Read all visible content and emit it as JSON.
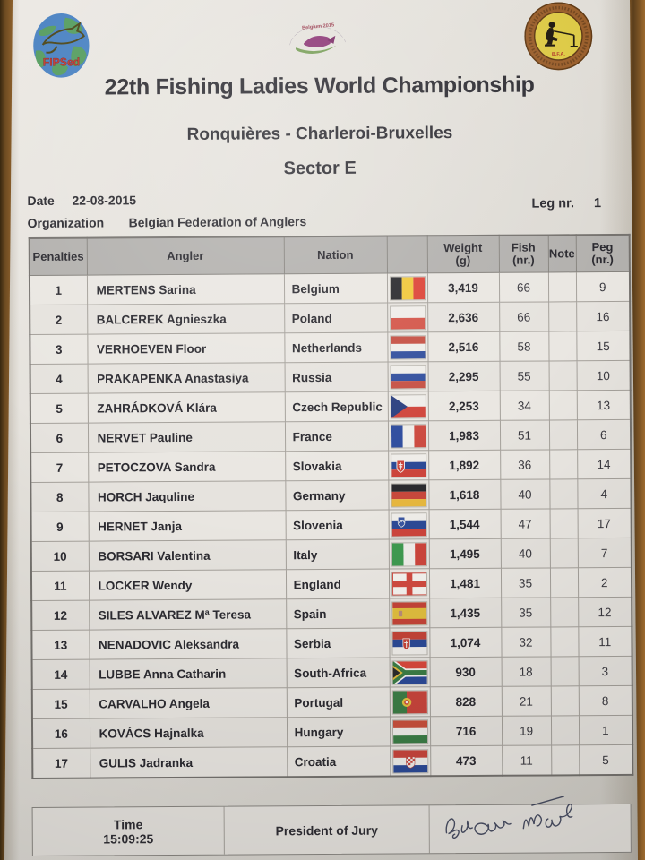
{
  "colors": {
    "desk_wood": "#8a5e2b",
    "paper": "#e3e0da",
    "table_header_bg": "#b3b1ae",
    "ink": "#2c2b31",
    "signature_ink": "#343a52",
    "fipsed_red": "#c03830",
    "bfa_red": "#b03028"
  },
  "header": {
    "title": "22th Fishing Ladies World Championship",
    "subtitle": "Ronquières - Charleroi-Bruxelles",
    "sector": "Sector E",
    "logos": {
      "left": {
        "name": "fipsed-globe-logo",
        "text": "FIPSed"
      },
      "center": {
        "name": "championship-2015-emblem",
        "text": "Belgium 2015"
      },
      "right": {
        "name": "bfa-federation-badge",
        "text": "B.F.A."
      }
    }
  },
  "meta": {
    "date_label": "Date",
    "date_value": "22-08-2015",
    "organization_label": "Organization",
    "organization_value": "Belgian Federation of Anglers",
    "leg_label": "Leg nr.",
    "leg_value": "1"
  },
  "table": {
    "headers": {
      "penalties": "Penalties",
      "angler": "Angler",
      "nation": "Nation",
      "weight_l1": "Weight",
      "weight_l2": "(g)",
      "fish_l1": "Fish",
      "fish_l2": "(nr.)",
      "note": "Note",
      "peg_l1": "Peg",
      "peg_l2": "(nr.)"
    },
    "rows": [
      {
        "rank": "1",
        "angler": "MERTENS Sarina",
        "nation": "Belgium",
        "flag": "belgium",
        "weight": "3,419",
        "fish": "66",
        "note": "",
        "peg": "9"
      },
      {
        "rank": "2",
        "angler": "BALCEREK Agnieszka",
        "nation": "Poland",
        "flag": "poland",
        "weight": "2,636",
        "fish": "66",
        "note": "",
        "peg": "16"
      },
      {
        "rank": "3",
        "angler": "VERHOEVEN Floor",
        "nation": "Netherlands",
        "flag": "netherlands",
        "weight": "2,516",
        "fish": "58",
        "note": "",
        "peg": "15"
      },
      {
        "rank": "4",
        "angler": "PRAKAPENKA Anastasiya",
        "nation": "Russia",
        "flag": "russia",
        "weight": "2,295",
        "fish": "55",
        "note": "",
        "peg": "10"
      },
      {
        "rank": "5",
        "angler": "ZAHRÁDKOVÁ Klára",
        "nation": "Czech Republic",
        "flag": "czech-republic",
        "weight": "2,253",
        "fish": "34",
        "note": "",
        "peg": "13"
      },
      {
        "rank": "6",
        "angler": "NERVET Pauline",
        "nation": "France",
        "flag": "france",
        "weight": "1,983",
        "fish": "51",
        "note": "",
        "peg": "6"
      },
      {
        "rank": "7",
        "angler": "PETOCZOVA Sandra",
        "nation": "Slovakia",
        "flag": "slovakia",
        "weight": "1,892",
        "fish": "36",
        "note": "",
        "peg": "14"
      },
      {
        "rank": "8",
        "angler": "HORCH Jaquline",
        "nation": "Germany",
        "flag": "germany",
        "weight": "1,618",
        "fish": "40",
        "note": "",
        "peg": "4"
      },
      {
        "rank": "9",
        "angler": "HERNET Janja",
        "nation": "Slovenia",
        "flag": "slovenia",
        "weight": "1,544",
        "fish": "47",
        "note": "",
        "peg": "17"
      },
      {
        "rank": "10",
        "angler": "BORSARI Valentina",
        "nation": "Italy",
        "flag": "italy",
        "weight": "1,495",
        "fish": "40",
        "note": "",
        "peg": "7"
      },
      {
        "rank": "11",
        "angler": "LOCKER Wendy",
        "nation": "England",
        "flag": "england",
        "weight": "1,481",
        "fish": "35",
        "note": "",
        "peg": "2"
      },
      {
        "rank": "12",
        "angler": "SILES ALVAREZ Mª Teresa",
        "nation": "Spain",
        "flag": "spain",
        "weight": "1,435",
        "fish": "35",
        "note": "",
        "peg": "12"
      },
      {
        "rank": "13",
        "angler": "NENADOVIC Aleksandra",
        "nation": "Serbia",
        "flag": "serbia",
        "weight": "1,074",
        "fish": "32",
        "note": "",
        "peg": "11"
      },
      {
        "rank": "14",
        "angler": "LUBBE Anna Catharin",
        "nation": "South-Africa",
        "flag": "south-africa",
        "weight": "930",
        "fish": "18",
        "note": "",
        "peg": "3"
      },
      {
        "rank": "15",
        "angler": "CARVALHO Angela",
        "nation": "Portugal",
        "flag": "portugal",
        "weight": "828",
        "fish": "21",
        "note": "",
        "peg": "8"
      },
      {
        "rank": "16",
        "angler": "KOVÁCS Hajnalka",
        "nation": "Hungary",
        "flag": "hungary",
        "weight": "716",
        "fish": "19",
        "note": "",
        "peg": "1"
      },
      {
        "rank": "17",
        "angler": "GULIS Jadranka",
        "nation": "Croatia",
        "flag": "croatia",
        "weight": "473",
        "fish": "11",
        "note": "",
        "peg": "5"
      }
    ]
  },
  "footer": {
    "time_label": "Time",
    "time_value": "15:09:25",
    "president_label": "President of Jury",
    "signature_name": "president-signature"
  }
}
